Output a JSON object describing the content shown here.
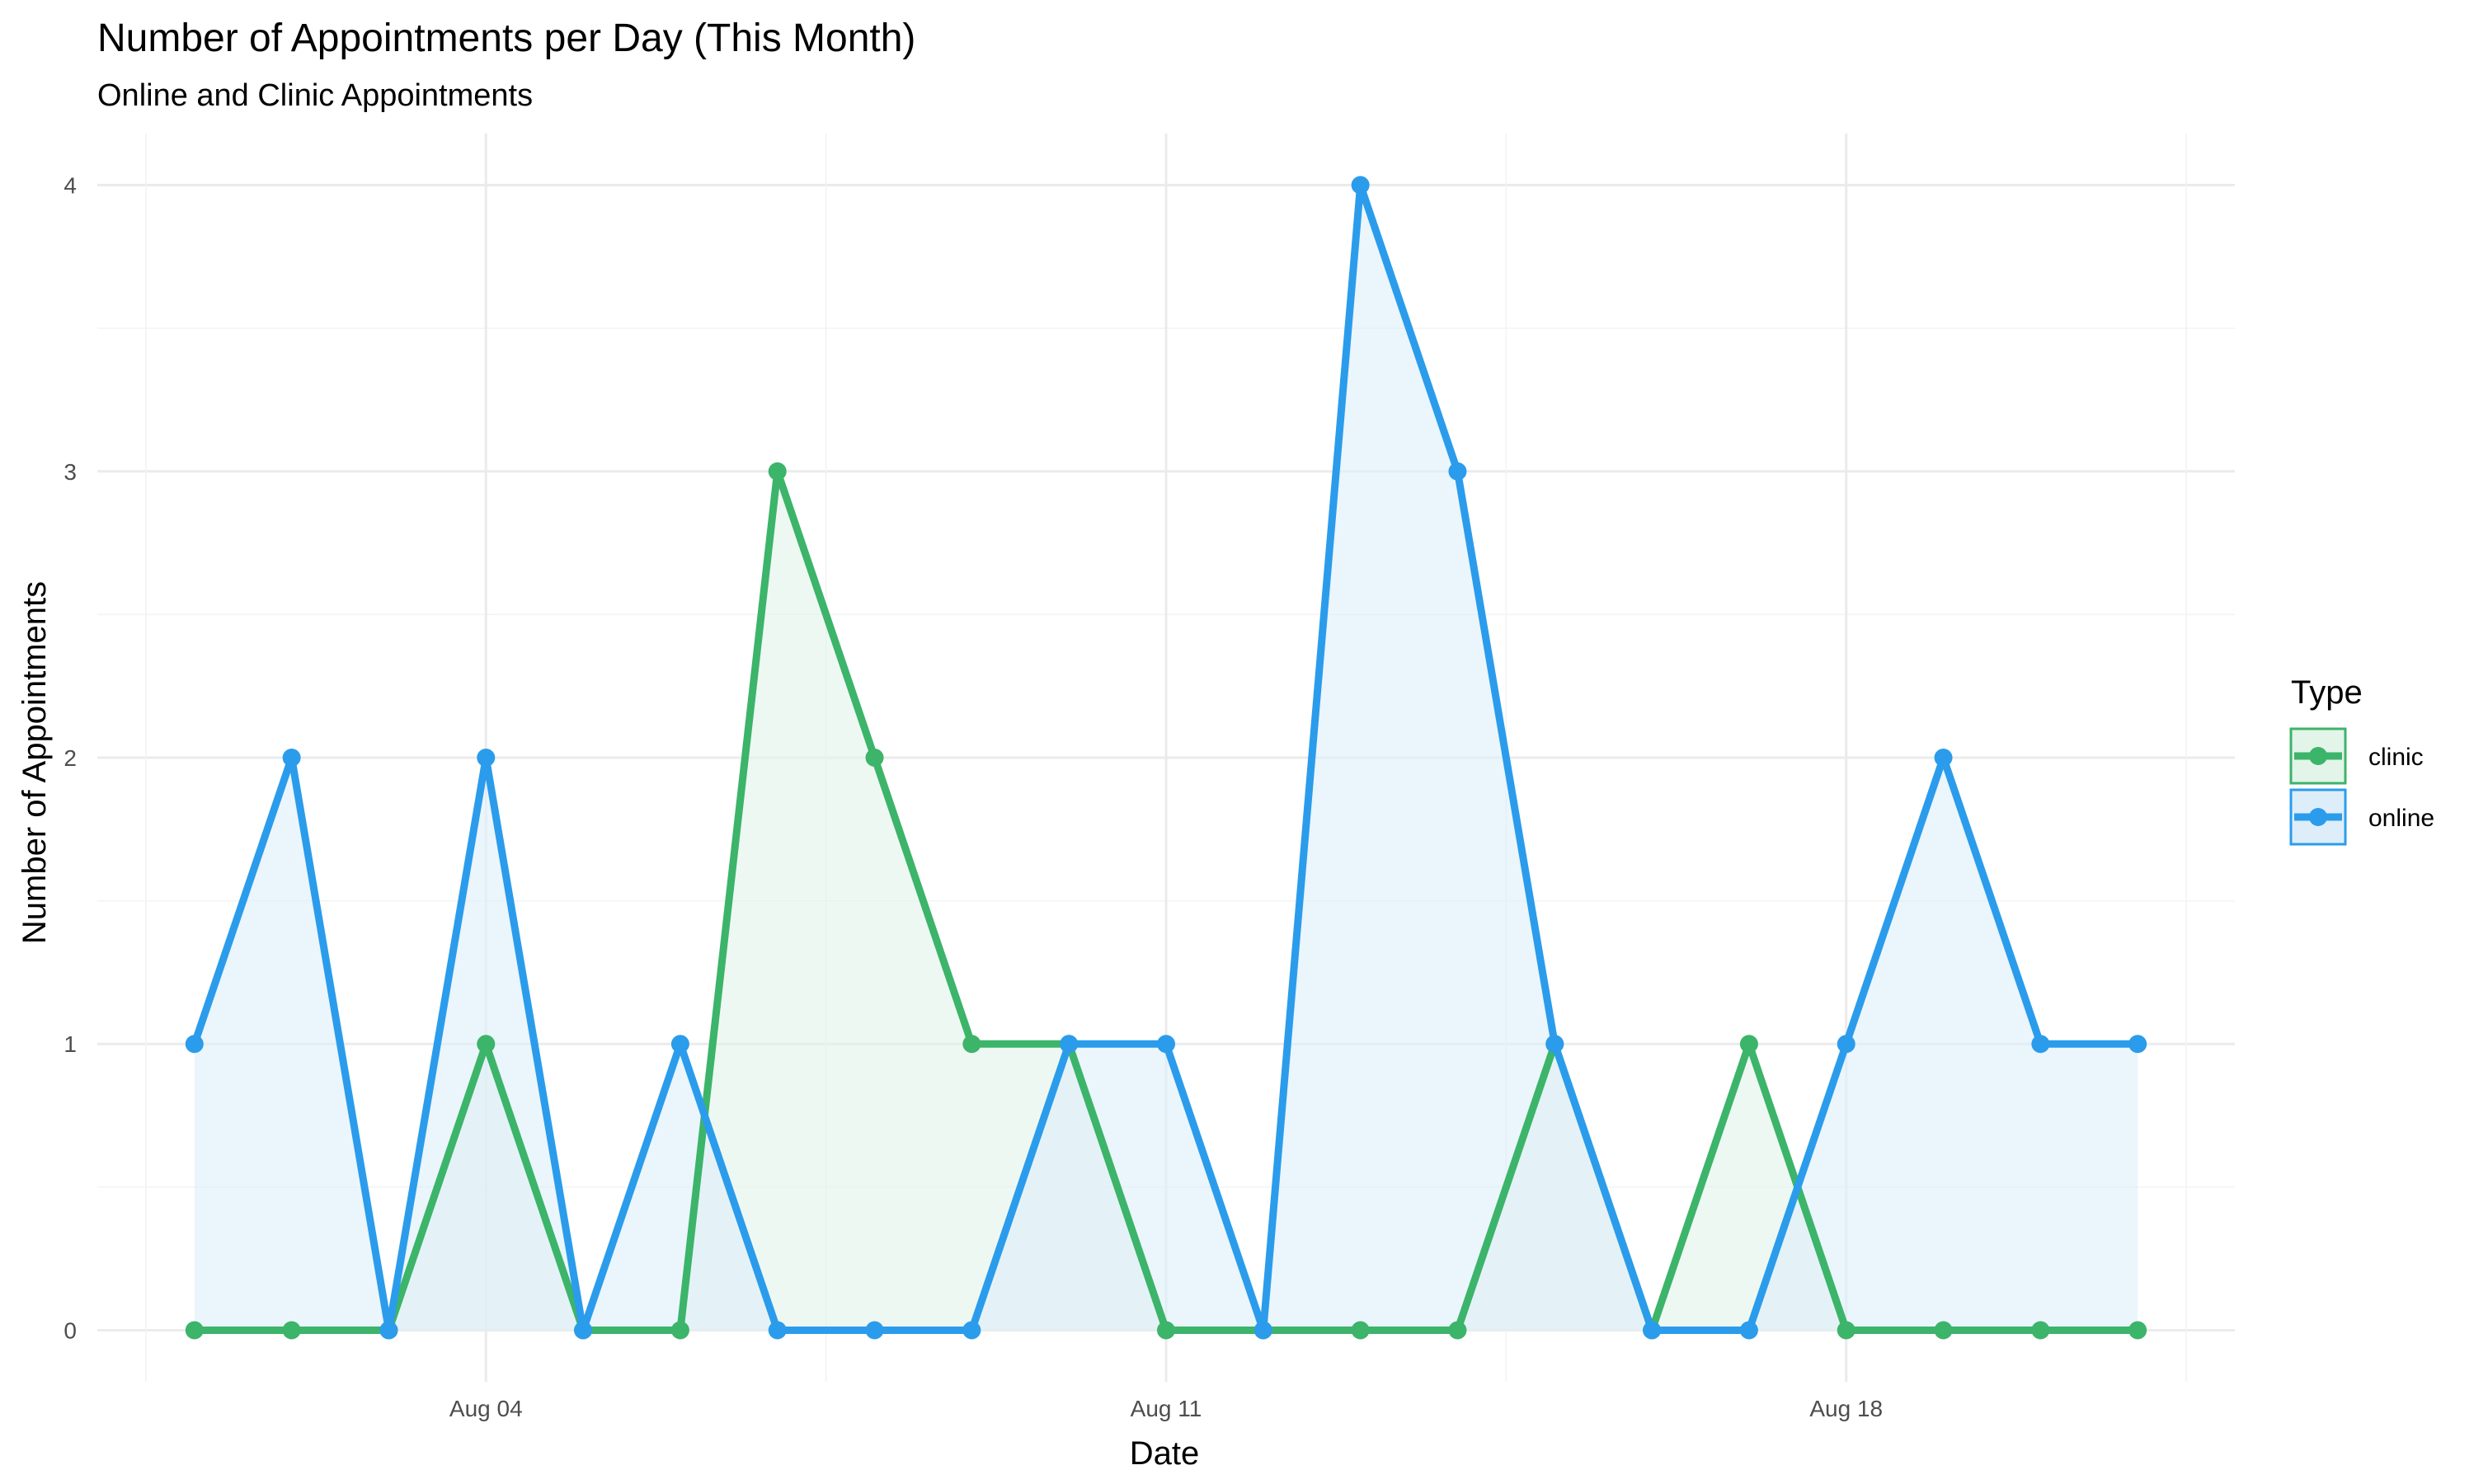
{
  "chart_data": {
    "type": "area",
    "title": "Number of Appointments per Day (This Month)",
    "subtitle": "Online and Clinic Appointments",
    "xlabel": "Date",
    "ylabel": "Number of Appointments",
    "x_dates": [
      "Aug 01",
      "Aug 02",
      "Aug 03",
      "Aug 04",
      "Aug 05",
      "Aug 06",
      "Aug 07",
      "Aug 08",
      "Aug 09",
      "Aug 10",
      "Aug 11",
      "Aug 12",
      "Aug 13",
      "Aug 14",
      "Aug 15",
      "Aug 16",
      "Aug 17",
      "Aug 18",
      "Aug 19",
      "Aug 20",
      "Aug 21"
    ],
    "x_ticks": [
      "Aug 04",
      "Aug 11",
      "Aug 18"
    ],
    "xlim": [
      "Jul 31",
      "Aug 22"
    ],
    "ylim": [
      -0.18,
      4.18
    ],
    "y_ticks": [
      0,
      1,
      2,
      3,
      4
    ],
    "grid": true,
    "legend": {
      "title": "Type",
      "placement": "right",
      "entries": [
        "clinic",
        "online"
      ]
    },
    "series": [
      {
        "name": "clinic",
        "color": "#3cb46a",
        "fill": "#e3f4e9",
        "values": [
          0,
          0,
          0,
          1,
          0,
          0,
          3,
          2,
          1,
          1,
          0,
          0,
          0,
          0,
          1,
          0,
          1,
          0,
          0,
          0,
          0
        ]
      },
      {
        "name": "online",
        "color": "#2b9ceb",
        "fill": "#ddeefa",
        "values": [
          1,
          2,
          0,
          2,
          0,
          1,
          0,
          0,
          0,
          1,
          1,
          0,
          4,
          3,
          1,
          0,
          0,
          1,
          2,
          1,
          1
        ]
      }
    ]
  }
}
